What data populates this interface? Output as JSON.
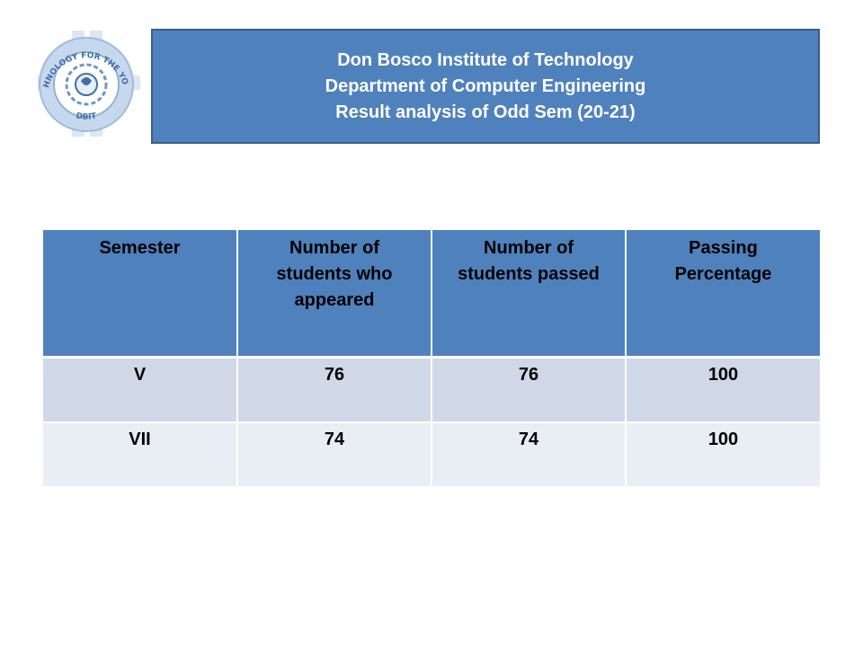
{
  "logo": {
    "ring_text_top": "TECHNOLOGY FOR THE YOUNG",
    "ring_text_bottom": "DBIT",
    "colors": {
      "ring": "#8fb3d9",
      "ring_dark": "#3f6fa8",
      "inner": "#ffffff"
    }
  },
  "header": {
    "line1": "Don Bosco Institute of Technology",
    "line2": "Department of Computer Engineering",
    "line3": "Result analysis of Odd Sem (20-21)"
  },
  "table": {
    "columns": [
      "Semester",
      "Number of students who appeared",
      "Number of students passed",
      "Passing Percentage"
    ],
    "rows": [
      [
        "V",
        "76",
        "76",
        "100"
      ],
      [
        "VII",
        "74",
        "74",
        "100"
      ]
    ]
  },
  "colors": {
    "header_fill": "#4f81bd",
    "header_border": "#385d8a",
    "row_odd": "#d0d8e8",
    "row_even": "#e9edf4"
  }
}
